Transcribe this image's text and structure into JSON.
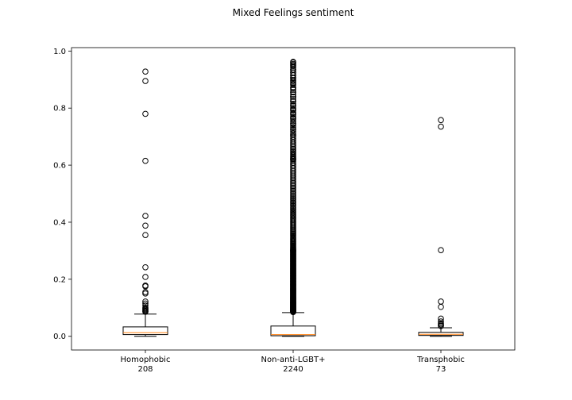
{
  "chart_data": {
    "type": "box",
    "title": "Mixed Feelings sentiment",
    "xlabel": "",
    "ylabel": "",
    "ylim": [
      -0.048,
      1.012
    ],
    "yticks": [
      0.0,
      0.2,
      0.4,
      0.6,
      0.8,
      1.0
    ],
    "ytick_labels": [
      "0.0",
      "0.2",
      "0.4",
      "0.6",
      "0.8",
      "1.0"
    ],
    "grid": false,
    "colors": {
      "box": "#000000",
      "median": "#ff7f0e",
      "flier": "#000000",
      "background": "#ffffff"
    },
    "groups": [
      {
        "label": "Homophobic",
        "count": "208",
        "whisker_low": 0.0,
        "q1": 0.006,
        "median": 0.013,
        "q3": 0.033,
        "whisker_high": 0.078,
        "fliers": [
          0.928,
          0.895,
          0.78,
          0.615,
          0.422,
          0.388,
          0.355,
          0.242,
          0.208,
          0.178,
          0.175,
          0.155,
          0.15,
          0.122,
          0.115,
          0.108,
          0.1,
          0.097,
          0.094,
          0.091,
          0.088,
          0.086
        ]
      },
      {
        "label": "Non-anti-LGBT+",
        "count": "2240",
        "whisker_low": 0.0,
        "q1": 0.002,
        "median": 0.006,
        "q3": 0.036,
        "whisker_high": 0.083,
        "flier_bands": [
          [
            0.085,
            0.3,
            150
          ],
          [
            0.3,
            0.62,
            70
          ],
          [
            0.62,
            0.96,
            50
          ]
        ],
        "fliers": [
          0.962,
          0.955,
          0.947,
          0.935,
          0.925,
          0.915,
          0.905,
          0.895,
          0.885,
          0.87,
          0.855,
          0.84,
          0.825,
          0.81,
          0.795,
          0.78,
          0.765,
          0.745,
          0.725,
          0.705
        ]
      },
      {
        "label": "Transphobic",
        "count": "73",
        "whisker_low": 0.0,
        "q1": 0.003,
        "median": 0.007,
        "q3": 0.014,
        "whisker_high": 0.03,
        "fliers": [
          0.758,
          0.735,
          0.302,
          0.122,
          0.103,
          0.062,
          0.052,
          0.046,
          0.042,
          0.038,
          0.036
        ]
      }
    ]
  }
}
